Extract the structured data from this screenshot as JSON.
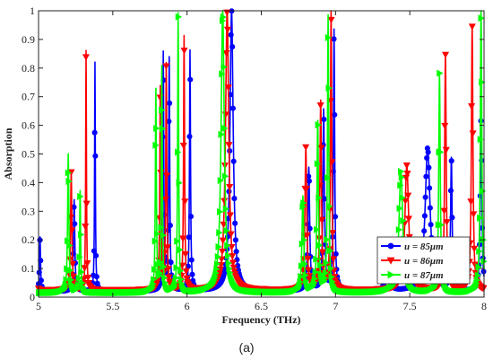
{
  "caption": "(a)",
  "chart_data": {
    "type": "line",
    "xlabel": "Frequency (THz)",
    "ylabel": "Absorption",
    "xlim": [
      5,
      8
    ],
    "ylim": [
      0,
      1
    ],
    "xticks": [
      "5",
      "5.5",
      "6",
      "6.5",
      "7",
      "7.5",
      "8"
    ],
    "yticks": [
      "0",
      "0.1",
      "0.2",
      "0.3",
      "0.4",
      "0.5",
      "0.6",
      "0.7",
      "0.8",
      "0.9",
      "1"
    ],
    "grid": false,
    "legend_position": "bottom-right",
    "series": [
      {
        "name": "u = 85μm",
        "legend": {
          "prefix": "u = 85",
          "unit": "μm"
        },
        "color": "#0000ff",
        "marker": "circle",
        "baseline": 0.02,
        "peaks": [
          [
            5.01,
            0.21,
            0.004
          ],
          [
            5.24,
            0.34,
            0.005
          ],
          [
            5.38,
            0.82,
            0.003
          ],
          [
            5.84,
            0.85,
            0.004
          ],
          [
            5.88,
            0.83,
            0.004
          ],
          [
            6.02,
            0.86,
            0.004
          ],
          [
            6.3,
            1.0,
            0.013
          ],
          [
            6.82,
            0.45,
            0.007
          ],
          [
            6.92,
            0.65,
            0.006
          ],
          [
            6.99,
            0.93,
            0.005
          ],
          [
            7.35,
            0.19,
            0.01
          ],
          [
            7.62,
            0.52,
            0.02
          ],
          [
            7.78,
            0.48,
            0.006
          ],
          [
            7.98,
            0.63,
            0.006
          ]
        ]
      },
      {
        "name": "u = 86μm",
        "legend": {
          "prefix": "u = 86",
          "unit": "μm"
        },
        "color": "#ff0000",
        "marker": "triangle-down",
        "baseline": 0.025,
        "peaks": [
          [
            5.0,
            0.03,
            0.004
          ],
          [
            5.22,
            0.44,
            0.005
          ],
          [
            5.32,
            0.86,
            0.003
          ],
          [
            5.82,
            0.73,
            0.004
          ],
          [
            5.86,
            0.81,
            0.004
          ],
          [
            5.98,
            0.91,
            0.004
          ],
          [
            6.27,
            1.0,
            0.013
          ],
          [
            6.8,
            0.52,
            0.007
          ],
          [
            6.9,
            0.68,
            0.006
          ],
          [
            6.97,
            1.0,
            0.005
          ],
          [
            7.48,
            0.46,
            0.015
          ],
          [
            7.74,
            0.85,
            0.006
          ],
          [
            7.92,
            0.95,
            0.006
          ]
        ]
      },
      {
        "name": "u = 87μm",
        "legend": {
          "prefix": "u = 87",
          "unit": "μm"
        },
        "color": "#00ff00",
        "marker": "triangle-right",
        "baseline": 0.015,
        "peaks": [
          [
            5.2,
            0.5,
            0.005
          ],
          [
            5.28,
            0.37,
            0.004
          ],
          [
            5.79,
            0.72,
            0.004
          ],
          [
            5.83,
            0.8,
            0.004
          ],
          [
            5.94,
            0.99,
            0.004
          ],
          [
            6.24,
            1.0,
            0.013
          ],
          [
            6.78,
            0.35,
            0.007
          ],
          [
            6.88,
            0.61,
            0.006
          ],
          [
            6.95,
            0.98,
            0.005
          ],
          [
            7.44,
            0.44,
            0.015
          ],
          [
            7.7,
            0.78,
            0.006
          ],
          [
            7.98,
            1.0,
            0.006
          ]
        ]
      }
    ]
  }
}
